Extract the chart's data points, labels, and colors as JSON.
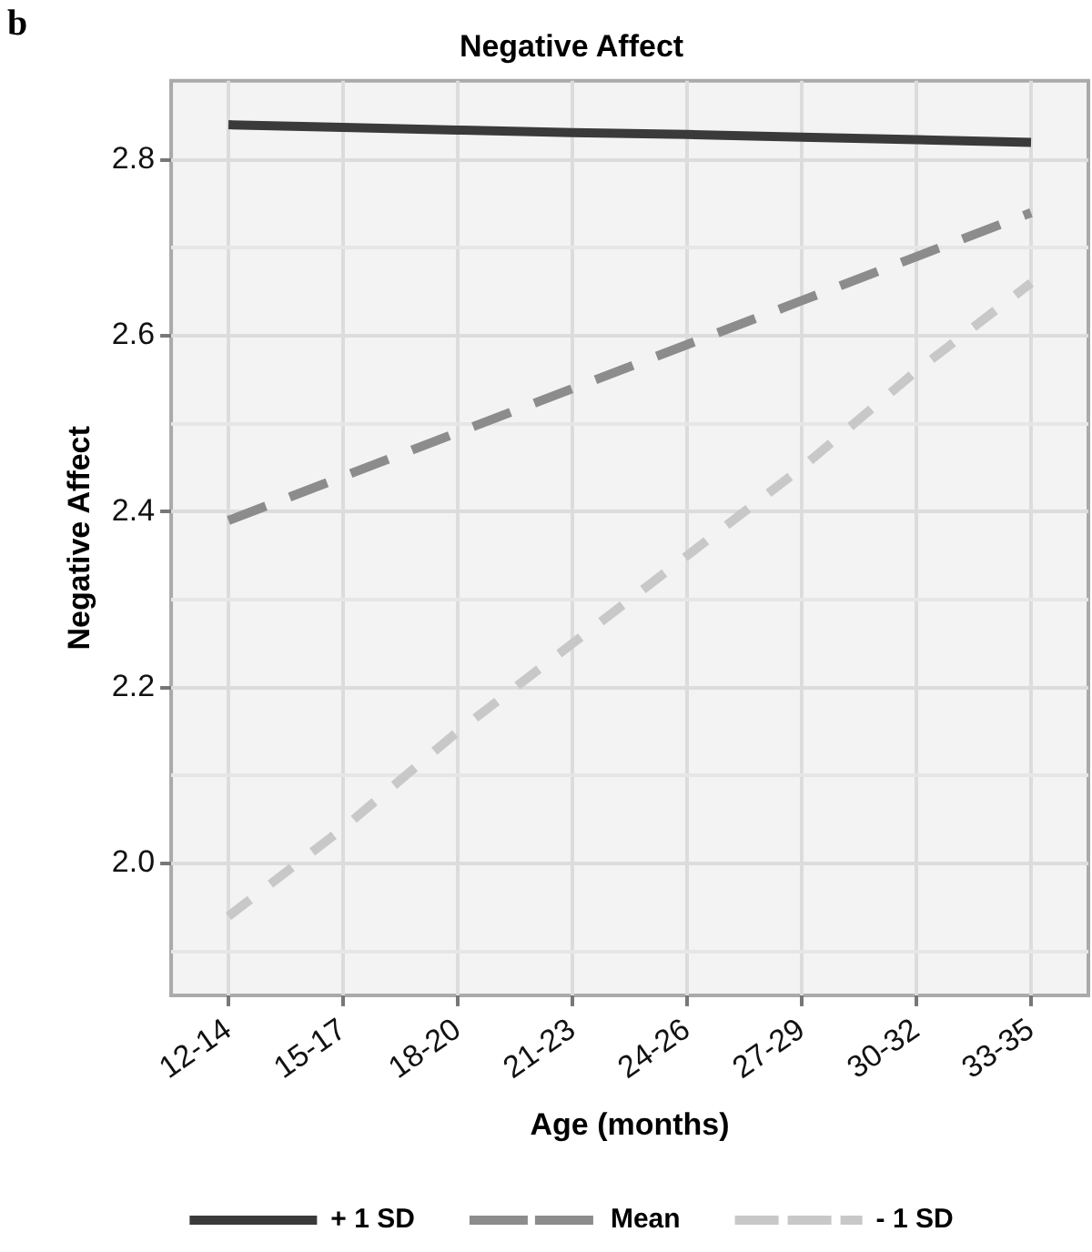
{
  "chart_data": {
    "type": "line",
    "title": "Negative Affect",
    "xlabel": "Age (months)",
    "ylabel": "Negative Affect",
    "annotations": [
      "b"
    ],
    "categories": [
      "12-14",
      "15-17",
      "18-20",
      "21-23",
      "24-26",
      "27-29",
      "30-32",
      "33-35"
    ],
    "series": [
      {
        "name": "+ 1 SD",
        "color": "#3a3a3a",
        "line_style": "solid",
        "values": [
          2.84,
          2.837,
          2.834,
          2.831,
          2.829,
          2.826,
          2.823,
          2.82
        ]
      },
      {
        "name": "Mean",
        "color": "#8c8c8c",
        "line_style": "dashed",
        "values": [
          2.39,
          2.44,
          2.49,
          2.54,
          2.59,
          2.64,
          2.69,
          2.74
        ]
      },
      {
        "name": "- 1 SD",
        "color": "#c8c8c8",
        "line_style": "dashed",
        "values": [
          1.94,
          2.04,
          2.15,
          2.25,
          2.35,
          2.45,
          2.56,
          2.66
        ]
      }
    ],
    "ylim": [
      1.85,
      2.89
    ],
    "yticks": [
      {
        "value": 1.9,
        "label": null
      },
      {
        "value": 2,
        "label": "2.0"
      },
      {
        "value": 2.1,
        "label": null
      },
      {
        "value": 2.2,
        "label": "2.2"
      },
      {
        "value": 2.3,
        "label": null
      },
      {
        "value": 2.4,
        "label": "2.4"
      },
      {
        "value": 2.5,
        "label": null
      },
      {
        "value": 2.6,
        "label": "2.6"
      },
      {
        "value": 2.7,
        "label": null
      },
      {
        "value": 2.8,
        "label": "2.8"
      }
    ],
    "grid": true,
    "legend": "bottom",
    "marker": "none"
  }
}
